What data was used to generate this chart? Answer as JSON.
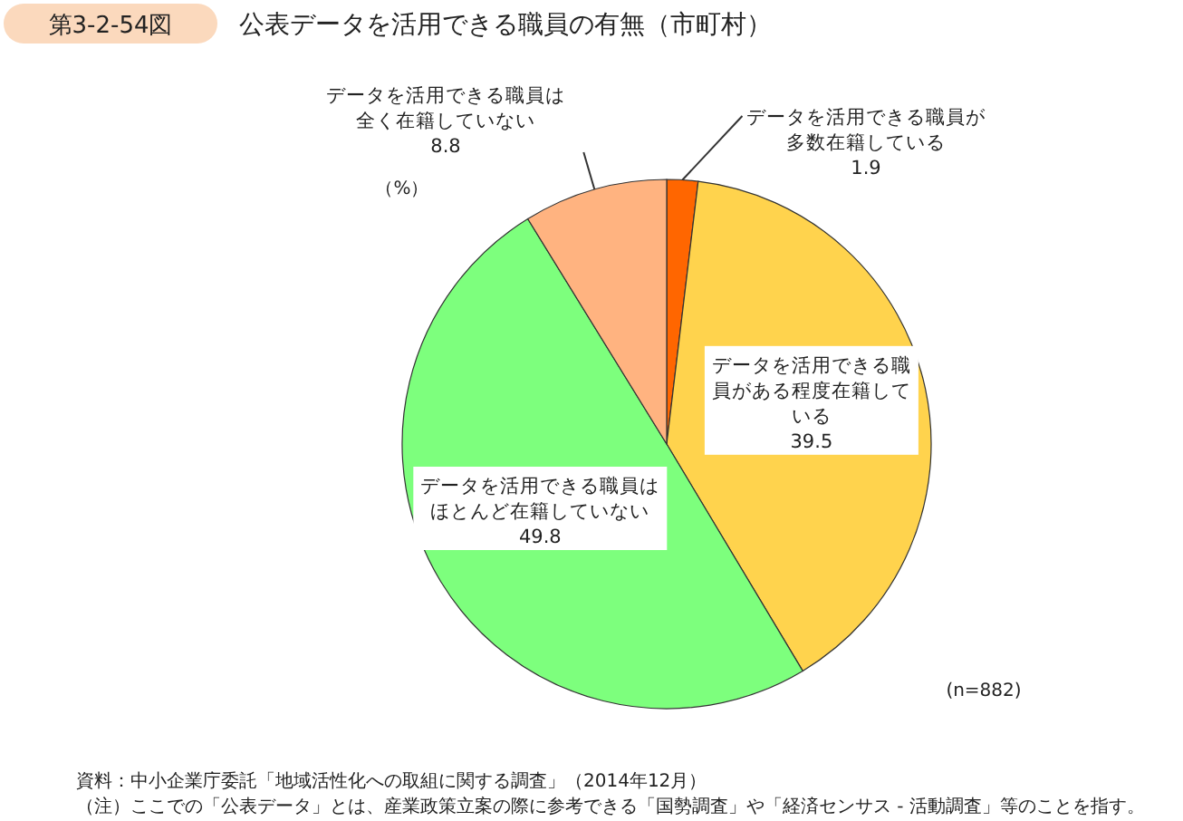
{
  "chart_data": {
    "type": "pie",
    "title": "公表データを活用できる職員の有無（市町村）",
    "categories": [
      "データを活用できる職員が多数在籍している",
      "データを活用できる職員がある程度在籍している",
      "データを活用できる職員はほとんど在籍していない",
      "データを活用できる職員は全く在籍していない"
    ],
    "values": [
      1.9,
      39.5,
      49.8,
      8.8
    ],
    "colors": [
      "#ff6600",
      "#ffd34d",
      "#7dff7d",
      "#ffb380"
    ],
    "data_labels": true,
    "annotations": [
      "第3-2-54図",
      "（%）",
      "(n=882)",
      "資料：中小企業庁委託「地域活性化への取組に関する調査」（2014年12月）",
      "（注）ここでの「公表データ」とは、産業政策立案の際に参考できる「国勢調査」や「経済センサス - 活動調査」等のことを指す。"
    ]
  }
}
